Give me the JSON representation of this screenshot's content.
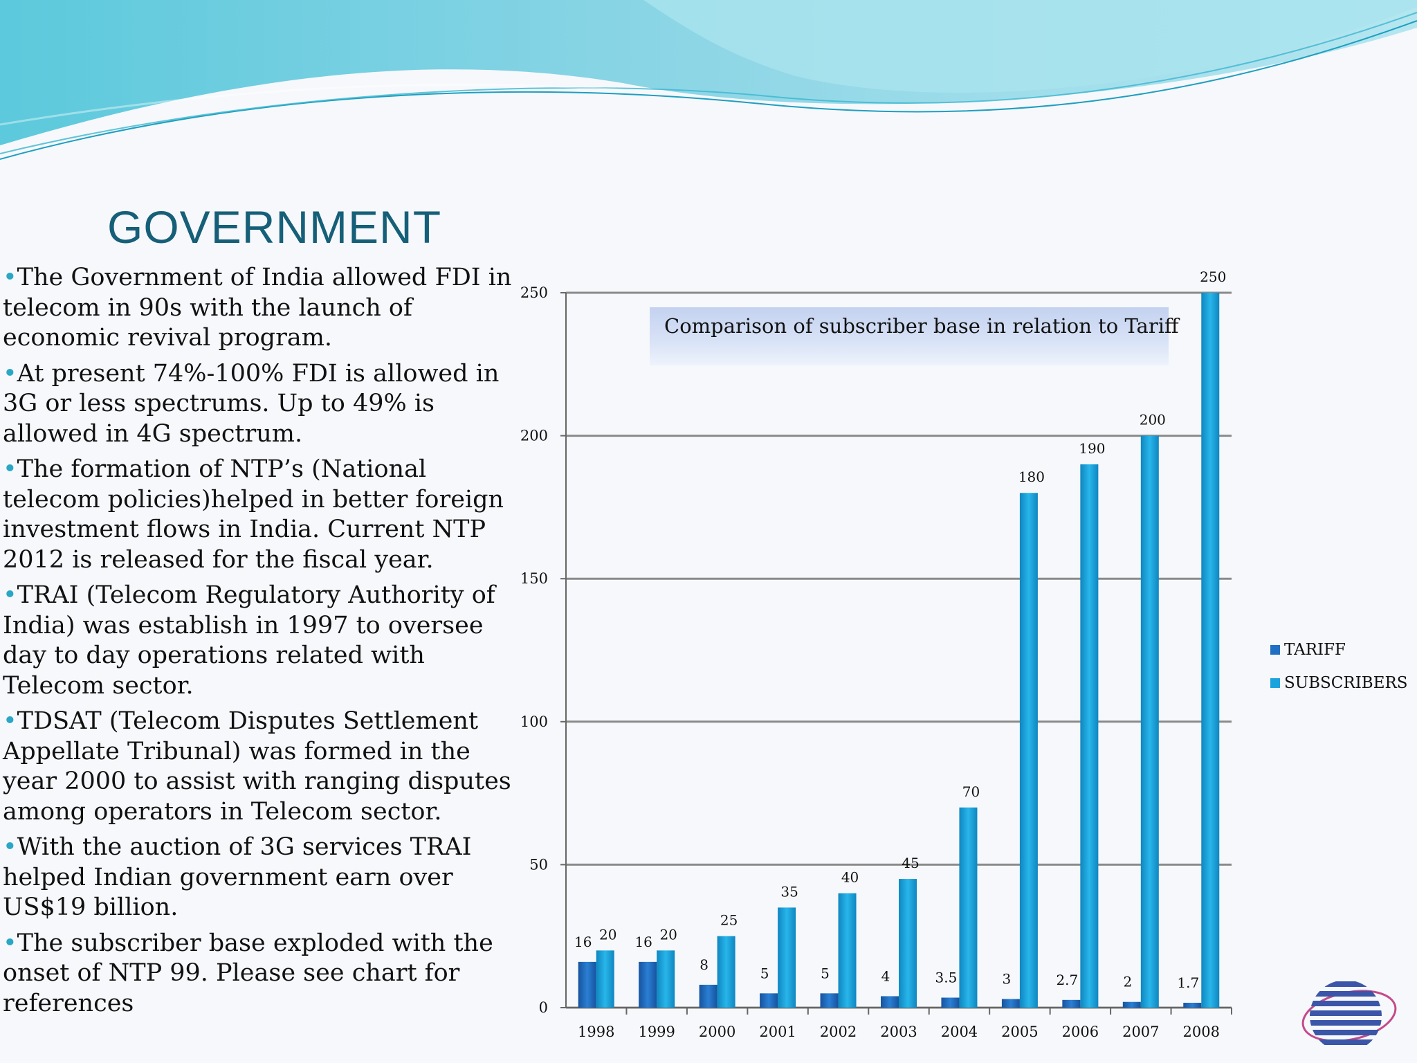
{
  "slide": {
    "title": "GOVERNMENT",
    "bullet_mark": "•",
    "bullets": [
      "The Government of India allowed FDI in telecom in 90s with the launch of economic revival program.",
      "At present 74%-100% FDI is allowed in 3G or less spectrums. Up to 49% is allowed in 4G spectrum.",
      "The formation of NTP’s (National telecom policies)helped in better foreign investment flows in India. Current NTP 2012 is released for the fiscal year.",
      "TRAI (Telecom Regulatory Authority of India) was establish in 1997 to oversee day to day operations related with Telecom sector.",
      "TDSAT (Telecom Disputes Settlement Appellate Tribunal) was formed in the year 2000 to assist with ranging disputes among operators in Telecom sector.",
      "With the auction of 3G services TRAI helped Indian government earn over US$19 billion.",
      "The subscriber base exploded with the onset of NTP 99. Please see chart for references"
    ]
  },
  "colors": {
    "title": "#165f78",
    "bullet_dot": "#2aa7c5",
    "tariff": "#1f6fc4",
    "subscribers": "#1aa3dc",
    "gridline": "#8a8a8a"
  },
  "chart_data": {
    "type": "bar",
    "title": "Comparison of subscriber base in relation to Tariff",
    "categories": [
      "1998",
      "1999",
      "2000",
      "2001",
      "2002",
      "2003",
      "2004",
      "2005",
      "2006",
      "2007",
      "2008"
    ],
    "series": [
      {
        "name": "TARIFF",
        "values": [
          16,
          16,
          8,
          5,
          5,
          4,
          3.5,
          3,
          2.7,
          2,
          1.7
        ]
      },
      {
        "name": "SUBSCRIBERS",
        "values": [
          20,
          20,
          25,
          35,
          40,
          45,
          70,
          180,
          190,
          200,
          250
        ]
      }
    ],
    "ylim": [
      0,
      250
    ],
    "yticks": [
      0,
      50,
      100,
      150,
      200,
      250
    ],
    "grid": true,
    "legend": "right"
  }
}
